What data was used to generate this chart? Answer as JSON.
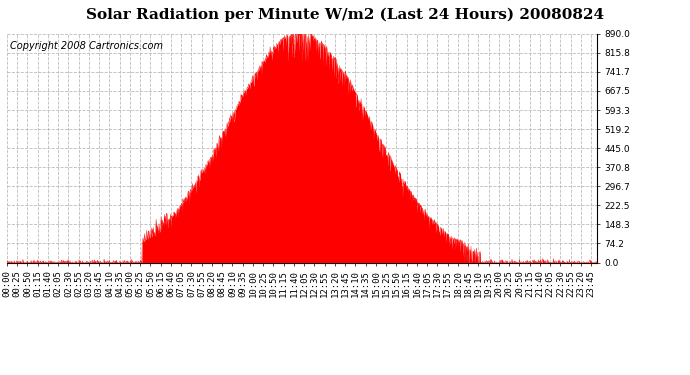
{
  "title": "Solar Radiation per Minute W/m2 (Last 24 Hours) 20080824",
  "copyright": "Copyright 2008 Cartronics.com",
  "ylim": [
    0.0,
    890.0
  ],
  "yticks": [
    0.0,
    74.2,
    148.3,
    222.5,
    296.7,
    370.8,
    445.0,
    519.2,
    593.3,
    667.5,
    741.7,
    815.8,
    890.0
  ],
  "fill_color": "red",
  "line_color": "red",
  "background_color": "white",
  "grid_color": "#bbbbbb",
  "dashed_line_color": "red",
  "title_fontsize": 11,
  "copyright_fontsize": 7,
  "tick_fontsize": 6.5,
  "sunrise_min": 330,
  "sunset_min": 1155,
  "peak_min": 715,
  "peak_val": 890,
  "xtick_step": 25
}
